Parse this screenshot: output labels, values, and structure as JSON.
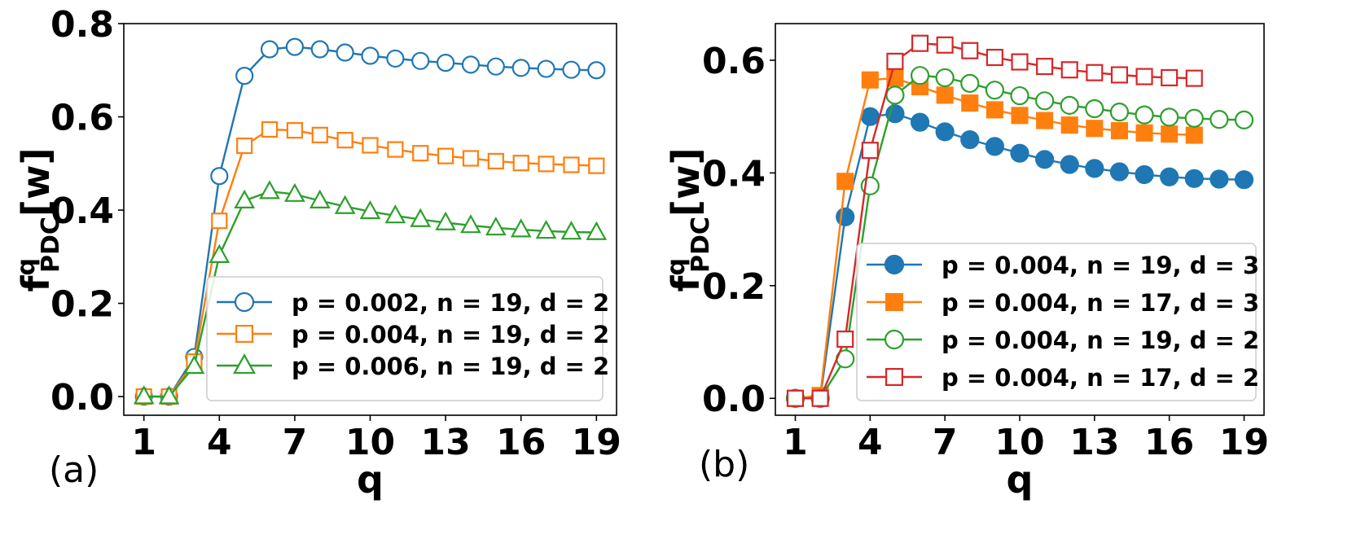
{
  "chart_data": [
    {
      "type": "line",
      "panel_label": "(a)",
      "xlabel": "q",
      "ylabel": {
        "main": "f",
        "sup": "q",
        "sub": "PDC",
        "suffix": "[w]"
      },
      "xlim": [
        0.2,
        19.8
      ],
      "ylim": [
        -0.04,
        0.8
      ],
      "xticks": [
        1,
        4,
        7,
        10,
        13,
        16,
        19
      ],
      "xtick_labels": [
        "1",
        "4",
        "7",
        "10",
        "13",
        "16",
        "19"
      ],
      "yticks": [
        0.0,
        0.2,
        0.4,
        0.6,
        0.8
      ],
      "ytick_labels": [
        "0.0",
        "0.2",
        "0.4",
        "0.6",
        "0.8"
      ],
      "legend_position": "lower-right",
      "x": [
        1,
        2,
        3,
        4,
        5,
        6,
        7,
        8,
        9,
        10,
        11,
        12,
        13,
        14,
        15,
        16,
        17,
        18,
        19
      ],
      "series": [
        {
          "name": "p = 0.002, n = 19, d = 2",
          "color": "#1f77b4",
          "marker": "circle",
          "filled": false,
          "values": [
            0.0,
            0.0,
            0.085,
            0.473,
            0.688,
            0.745,
            0.75,
            0.745,
            0.738,
            0.731,
            0.725,
            0.72,
            0.716,
            0.712,
            0.708,
            0.705,
            0.703,
            0.701,
            0.7
          ]
        },
        {
          "name": "p = 0.004, n = 19, d = 2",
          "color": "#ff7f0e",
          "marker": "square",
          "filled": false,
          "values": [
            0.0,
            0.0,
            0.075,
            0.377,
            0.538,
            0.573,
            0.571,
            0.561,
            0.55,
            0.539,
            0.53,
            0.522,
            0.516,
            0.511,
            0.505,
            0.501,
            0.499,
            0.497,
            0.495
          ]
        },
        {
          "name": "p = 0.006, n = 19, d = 2",
          "color": "#2ca02c",
          "marker": "triangle",
          "filled": false,
          "values": [
            0.0,
            0.0,
            0.065,
            0.303,
            0.42,
            0.44,
            0.434,
            0.42,
            0.408,
            0.397,
            0.388,
            0.38,
            0.373,
            0.367,
            0.362,
            0.358,
            0.355,
            0.353,
            0.352
          ]
        }
      ]
    },
    {
      "type": "line",
      "panel_label": "(b)",
      "xlabel": "q",
      "ylabel": {
        "main": "f",
        "sup": "q",
        "sub": "PDC",
        "suffix": "[w]"
      },
      "xlim": [
        0.2,
        19.8
      ],
      "ylim": [
        -0.03,
        0.665
      ],
      "xticks": [
        1,
        4,
        7,
        10,
        13,
        16,
        19
      ],
      "xtick_labels": [
        "1",
        "4",
        "7",
        "10",
        "13",
        "16",
        "19"
      ],
      "yticks": [
        0.0,
        0.2,
        0.4,
        0.6
      ],
      "ytick_labels": [
        "0.0",
        "0.2",
        "0.4",
        "0.6"
      ],
      "legend_position": "lower-right",
      "series": [
        {
          "name": "p = 0.004, n = 19, d = 3",
          "color": "#1f77b4",
          "marker": "circle",
          "filled": true,
          "x": [
            1,
            2,
            3,
            4,
            5,
            6,
            7,
            8,
            9,
            10,
            11,
            12,
            13,
            14,
            15,
            16,
            17,
            18,
            19
          ],
          "values": [
            0.0,
            0.0,
            0.322,
            0.5,
            0.505,
            0.49,
            0.473,
            0.459,
            0.447,
            0.435,
            0.424,
            0.415,
            0.408,
            0.402,
            0.397,
            0.393,
            0.39,
            0.389,
            0.388
          ]
        },
        {
          "name": "p = 0.004, n = 17, d = 3",
          "color": "#ff7f0e",
          "marker": "square",
          "filled": true,
          "x": [
            1,
            2,
            3,
            4,
            5,
            6,
            7,
            8,
            9,
            10,
            11,
            12,
            13,
            14,
            15,
            16,
            17
          ],
          "values": [
            0.0,
            0.005,
            0.385,
            0.565,
            0.568,
            0.553,
            0.538,
            0.524,
            0.512,
            0.502,
            0.493,
            0.485,
            0.479,
            0.475,
            0.471,
            0.469,
            0.467
          ]
        },
        {
          "name": "p = 0.004, n = 19, d = 2",
          "color": "#2ca02c",
          "marker": "circle",
          "filled": false,
          "x": [
            1,
            2,
            3,
            4,
            5,
            6,
            7,
            8,
            9,
            10,
            11,
            12,
            13,
            14,
            15,
            16,
            17,
            18,
            19
          ],
          "values": [
            0.0,
            0.0,
            0.07,
            0.377,
            0.538,
            0.573,
            0.569,
            0.559,
            0.547,
            0.537,
            0.528,
            0.52,
            0.514,
            0.508,
            0.503,
            0.499,
            0.497,
            0.495,
            0.494
          ]
        },
        {
          "name": "p = 0.004, n = 17, d = 2",
          "color": "#d62728",
          "marker": "square",
          "filled": false,
          "x": [
            1,
            2,
            3,
            4,
            5,
            6,
            7,
            8,
            9,
            10,
            11,
            12,
            13,
            14,
            15,
            16,
            17
          ],
          "values": [
            0.0,
            0.0,
            0.105,
            0.44,
            0.598,
            0.63,
            0.627,
            0.617,
            0.605,
            0.597,
            0.589,
            0.583,
            0.578,
            0.574,
            0.571,
            0.569,
            0.568
          ]
        }
      ]
    }
  ]
}
